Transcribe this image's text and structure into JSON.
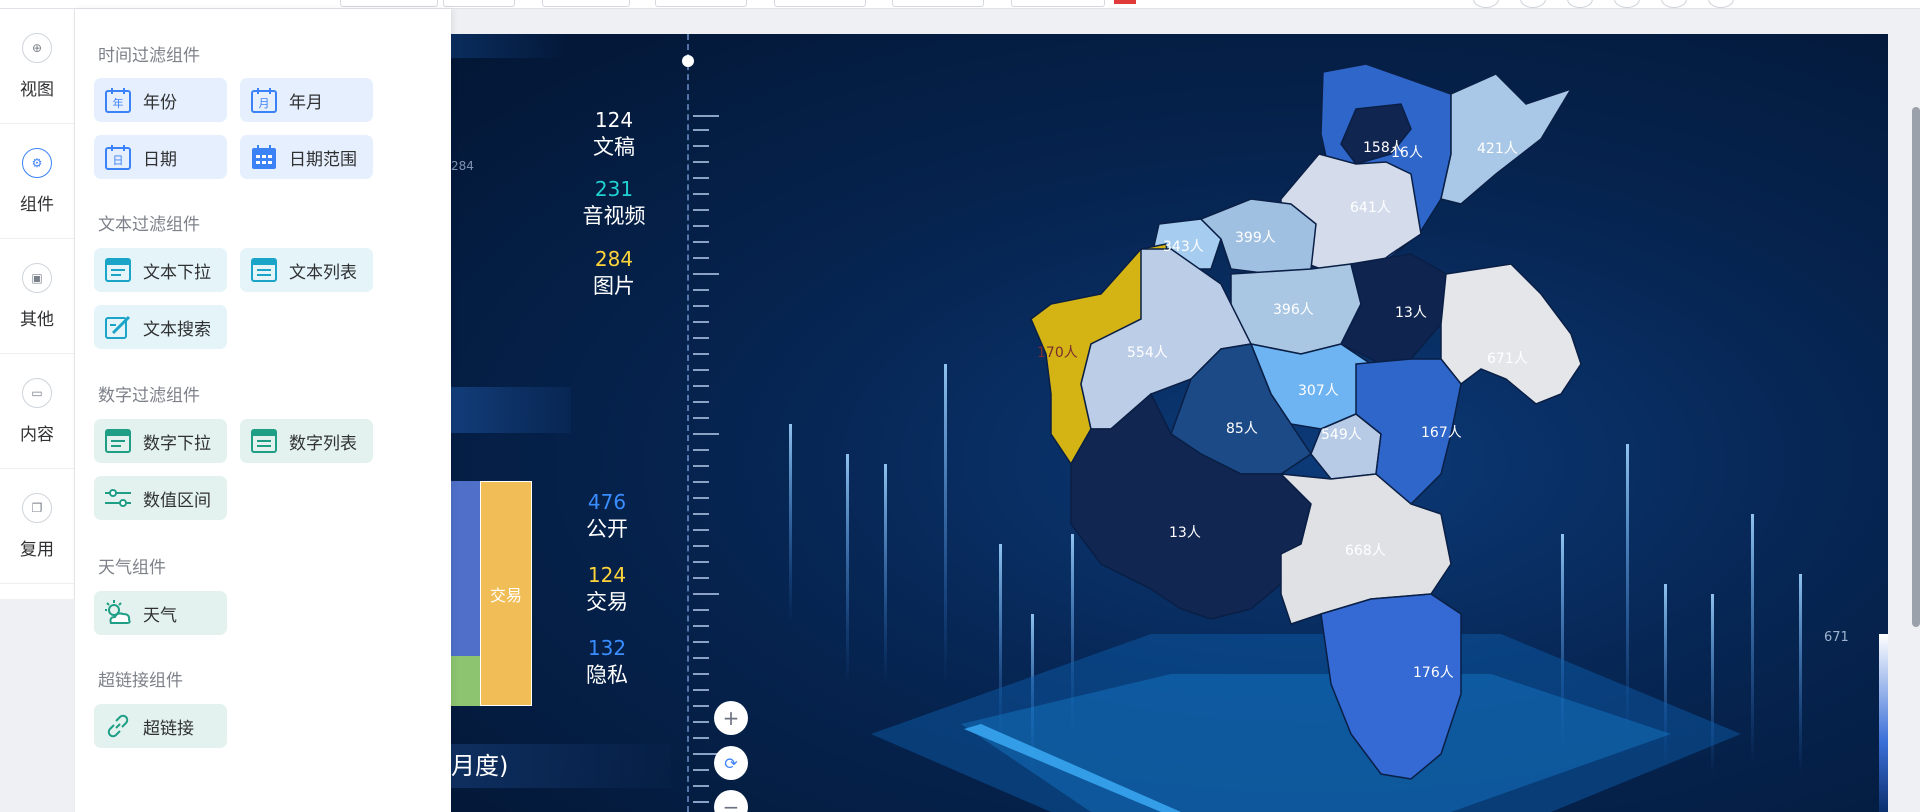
{
  "rail": {
    "items": [
      {
        "label": "视图",
        "icon": "plus-circle-icon"
      },
      {
        "label": "组件",
        "icon": "gear-icon"
      },
      {
        "label": "其他",
        "icon": "printer-icon"
      },
      {
        "label": "内容",
        "icon": "folder-icon"
      },
      {
        "label": "复用",
        "icon": "copy-icon"
      }
    ]
  },
  "panel": {
    "groups": [
      {
        "title": "时间过滤组件",
        "items": [
          "年份",
          "年月",
          "日期",
          "日期范围"
        ]
      },
      {
        "title": "文本过滤组件",
        "items": [
          "文本下拉",
          "文本列表",
          "文本搜索"
        ]
      },
      {
        "title": "数字过滤组件",
        "items": [
          "数字下拉",
          "数字列表",
          "数值区间"
        ]
      },
      {
        "title": "天气组件",
        "items": [
          "天气"
        ]
      },
      {
        "title": "超链接组件",
        "items": [
          "超链接"
        ]
      }
    ]
  },
  "dashboard": {
    "faint_number": "284",
    "stats_top": [
      {
        "value": "124",
        "label": "文稿",
        "color": "#ffffff"
      },
      {
        "value": "231",
        "label": "音视频",
        "color": "#1fd1d1"
      },
      {
        "value": "284",
        "label": "图片",
        "color": "#ffd43b"
      }
    ],
    "stats_bottom": [
      {
        "value": "476",
        "label": "公开",
        "color": "#3a8dff"
      },
      {
        "value": "124",
        "label": "交易",
        "color": "#ffd43b"
      },
      {
        "value": "132",
        "label": "隐私",
        "color": "#3a8dff"
      }
    ],
    "treemap_label": "交易",
    "bottom_title": "月度)",
    "legend_max": "671",
    "zoom": {
      "in": "+",
      "reset": "⟳",
      "out": "−"
    },
    "regions": [
      {
        "label": "158人",
        "color": "#2f66c9"
      },
      {
        "label": "16人",
        "color": "#10254f"
      },
      {
        "label": "421人",
        "color": "#a9c7e6"
      },
      {
        "label": "641人",
        "color": "#d4dceb"
      },
      {
        "label": "343人",
        "color": "#a6cdf0"
      },
      {
        "label": "399人",
        "color": "#a0c0e2"
      },
      {
        "label": "396人",
        "color": "#a9c6e3"
      },
      {
        "label": "13人",
        "color": "#0f2550"
      },
      {
        "label": "170人",
        "color": "#d4b414"
      },
      {
        "label": "554人",
        "color": "#bccde8"
      },
      {
        "label": "671人",
        "color": "#e4e6ea"
      },
      {
        "label": "307人",
        "color": "#6eb3f2"
      },
      {
        "label": "85人",
        "color": "#1b4a86"
      },
      {
        "label": "549人",
        "color": "#b8cbe6"
      },
      {
        "label": "167人",
        "color": "#2f66c9"
      },
      {
        "label": "13人",
        "color": "#112650"
      },
      {
        "label": "668人",
        "color": "#e0e1e5"
      },
      {
        "label": "176人",
        "color": "#3569d3"
      }
    ]
  }
}
